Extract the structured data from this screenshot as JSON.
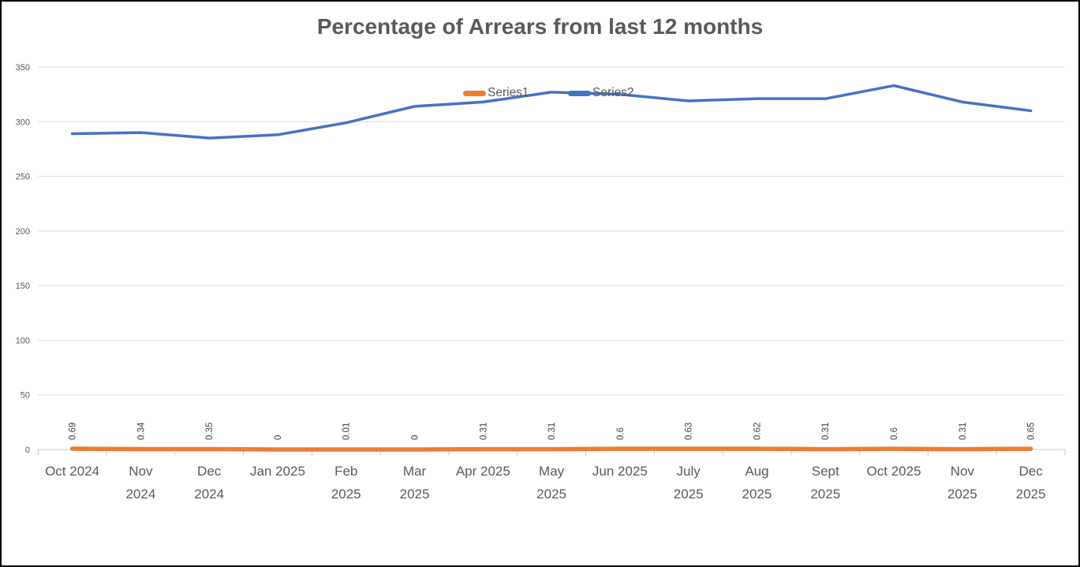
{
  "chart_data": {
    "type": "line",
    "title": "Percentage of Arrears from last 12 months",
    "categories": [
      "Oct 2024",
      "Nov 2024",
      "Dec 2024",
      "Jan 2025",
      "Feb 2025",
      "Mar 2025",
      "Apr 2025",
      "May 2025",
      "Jun 2025",
      "July 2025",
      "Aug 2025",
      "Sept 2025",
      "Oct 2025",
      "Nov 2025",
      "Dec 2025"
    ],
    "category_label_lines": [
      [
        "Oct 2024"
      ],
      [
        "Nov",
        "2024"
      ],
      [
        "Dec",
        "2024"
      ],
      [
        "Jan 2025"
      ],
      [
        "Feb",
        "2025"
      ],
      [
        "Mar",
        "2025"
      ],
      [
        "Apr 2025"
      ],
      [
        "May",
        "2025"
      ],
      [
        "Jun 2025"
      ],
      [
        "July",
        "2025"
      ],
      [
        "Aug",
        "2025"
      ],
      [
        "Sept",
        "2025"
      ],
      [
        "Oct 2025"
      ],
      [
        "Nov",
        "2025"
      ],
      [
        "Dec",
        "2025"
      ]
    ],
    "series": [
      {
        "name": "Series1",
        "color": "#ED7D31",
        "values": [
          0.69,
          0.34,
          0.35,
          0,
          0.01,
          0,
          0.31,
          0.31,
          0.6,
          0.63,
          0.62,
          0.31,
          0.6,
          0.31,
          0.65
        ],
        "data_labels": [
          "0.69",
          "0.34",
          "0.35",
          "0",
          "0.01",
          "0",
          "0.31",
          "0.31",
          "0.6",
          "0.63",
          "0.62",
          "0.31",
          "0.6",
          "0.31",
          "0.65"
        ]
      },
      {
        "name": "Series2",
        "color": "#4472C4",
        "values": [
          289,
          290,
          285,
          288,
          299,
          314,
          318,
          327,
          325,
          319,
          321,
          321,
          333,
          318,
          310
        ]
      }
    ],
    "y_axis": {
      "min": 0,
      "max": 350,
      "step": 50,
      "tick_labels": [
        "0",
        "50",
        "100",
        "150",
        "200",
        "250",
        "300",
        "350"
      ]
    },
    "legend": {
      "position": "inside-top-center",
      "entries": [
        "Series1",
        "Series2"
      ]
    },
    "grid": true
  },
  "theme": {
    "background": "#FFFFFF",
    "border_color": "#000000",
    "title_color": "#595959",
    "axis_label_color": "#595959",
    "data_label_color": "#404040",
    "gridline_color": "#DEDEDE",
    "axis_line_color": "#C8C8C8"
  }
}
